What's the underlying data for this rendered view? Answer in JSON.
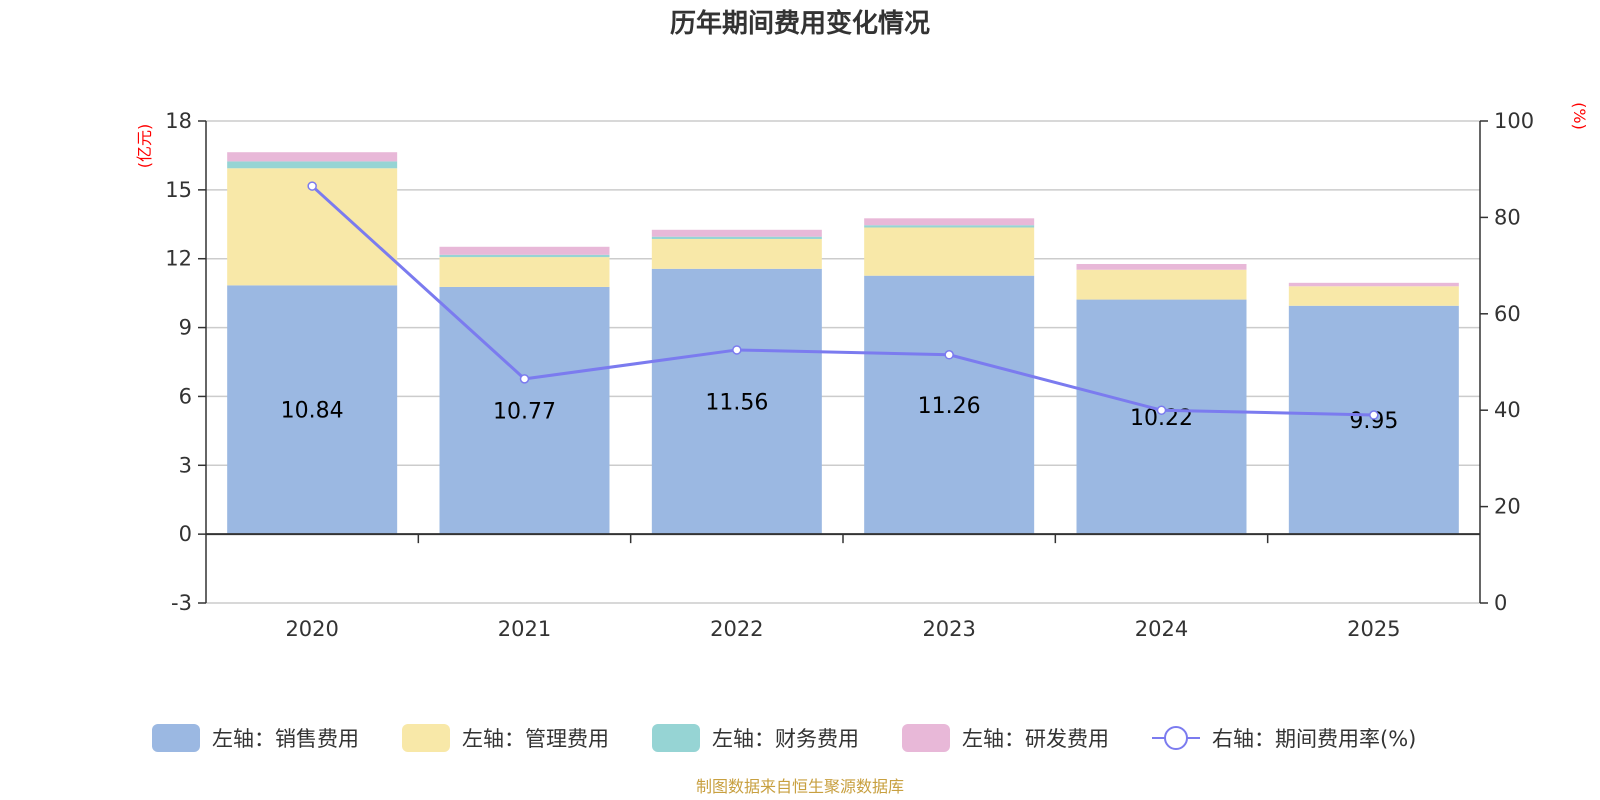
{
  "chart_data": {
    "type": "bar",
    "stacked": true,
    "title": "历年期间费用变化情况",
    "categories": [
      "2020",
      "2021",
      "2022",
      "2023",
      "2024",
      "2025"
    ],
    "left_axis": {
      "unit": "(亿元)",
      "ylim": [
        -3,
        18
      ],
      "ticks": [
        -3,
        0,
        3,
        6,
        9,
        12,
        15,
        18
      ]
    },
    "right_axis": {
      "unit": "(%)",
      "ylim": [
        0,
        100
      ],
      "ticks": [
        0,
        20,
        40,
        60,
        80,
        100
      ]
    },
    "series": [
      {
        "name": "左轴：销售费用",
        "axis": "left",
        "color": "#9bb8e2",
        "values": [
          10.84,
          10.77,
          11.56,
          11.26,
          10.22,
          9.95
        ],
        "labels": [
          "10.84",
          "10.77",
          "11.56",
          "11.26",
          "10.22",
          "9.95"
        ]
      },
      {
        "name": "左轴：管理费用",
        "axis": "left",
        "color": "#f8e8a8",
        "values": [
          5.1,
          1.3,
          1.3,
          2.1,
          1.3,
          0.85
        ]
      },
      {
        "name": "左轴：财务费用",
        "axis": "left",
        "color": "#96d4d4",
        "values": [
          0.3,
          0.1,
          0.1,
          0.1,
          0.0,
          0.0
        ]
      },
      {
        "name": "左轴：研发费用",
        "axis": "left",
        "color": "#e8b8d8",
        "values": [
          0.4,
          0.35,
          0.3,
          0.3,
          0.25,
          0.15
        ]
      },
      {
        "name": "右轴：期间费用率(%)",
        "axis": "right",
        "type": "line",
        "color": "#7b7bef",
        "values": [
          86.5,
          46.5,
          52.5,
          51.5,
          40.0,
          39.0
        ]
      }
    ],
    "legend_position": "bottom",
    "source": "制图数据来自恒生聚源数据库"
  }
}
